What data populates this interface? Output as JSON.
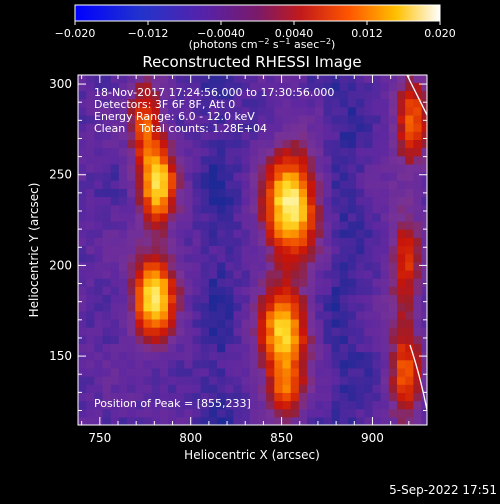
{
  "colorbar": {
    "ticks": [
      "−0.020",
      "−0.012",
      "−0.0040",
      "0.0040",
      "0.012",
      "0.020"
    ],
    "tick_values": [
      -0.02,
      -0.012,
      -0.004,
      0.004,
      0.012,
      0.02
    ],
    "range": [
      -0.02,
      0.02
    ],
    "units_main": "(photons cm",
    "units_sup1": "−2",
    "units_mid1": " s",
    "units_sup2": "−1",
    "units_mid2": " asec",
    "units_sup3": "−2",
    "units_end": ")"
  },
  "chart_data": {
    "type": "heatmap",
    "title": "Reconstructed RHESSI Image",
    "xlabel": "Heliocentric X (arcsec)",
    "ylabel": "Heliocentric Y (arcsec)",
    "xlim": [
      738,
      930
    ],
    "ylim": [
      112,
      305
    ],
    "xticks": [
      750,
      800,
      850,
      900
    ],
    "yticks": [
      150,
      200,
      250,
      300
    ],
    "colormap": "purple-red-orange-yellow-white",
    "sources": [
      {
        "x": 782,
        "y": 245,
        "sx": 7,
        "sy": 16,
        "amp": 0.85
      },
      {
        "x": 780,
        "y": 183,
        "sx": 8,
        "sy": 16,
        "amp": 0.95
      },
      {
        "x": 775,
        "y": 280,
        "sx": 6,
        "sy": 16,
        "amp": 0.55
      },
      {
        "x": 855,
        "y": 233,
        "sx": 10,
        "sy": 20,
        "amp": 1.0
      },
      {
        "x": 851,
        "y": 162,
        "sx": 9,
        "sy": 18,
        "amp": 0.85
      },
      {
        "x": 852,
        "y": 130,
        "sx": 7,
        "sy": 10,
        "amp": 0.45
      },
      {
        "x": 922,
        "y": 280,
        "sx": 7,
        "sy": 18,
        "amp": 0.55
      },
      {
        "x": 918,
        "y": 200,
        "sx": 6,
        "sy": 22,
        "amp": 0.45
      },
      {
        "x": 918,
        "y": 140,
        "sx": 6,
        "sy": 18,
        "amp": 0.55
      }
    ],
    "annotations": {
      "line1": "18-Nov-2017 17:24:56.000 to 17:30:56.000",
      "line2": "Detectors: 3F 6F 8F, Att 0",
      "line3": "Energy Range: 6.0 - 12.0 keV",
      "line4": "Clean    Total counts: 1.28E+04",
      "peak": "Position of Peak = [855,233]"
    }
  },
  "footer": {
    "timestamp": "5-Sep-2022 17:51"
  }
}
